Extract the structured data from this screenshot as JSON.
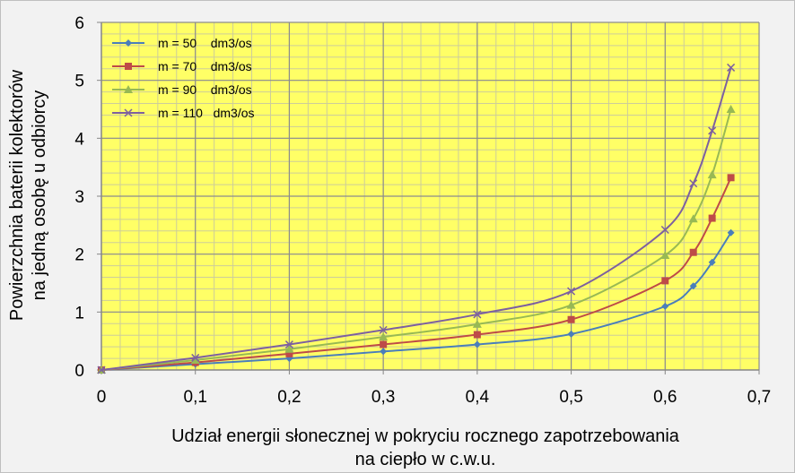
{
  "chart_data": {
    "type": "line",
    "title": "",
    "xlabel": [
      "Udział energii słonecznej w pokryciu rocznego zapotrzebowania",
      "na ciepło w c.w.u."
    ],
    "ylabel": [
      "Powierzchnia baterii kolektorów",
      "na jedną osobę u odbiorcy"
    ],
    "xlim": [
      0,
      0.7
    ],
    "ylim": [
      0,
      6
    ],
    "x_ticks": [
      "0",
      "0,1",
      "0,2",
      "0,3",
      "0,4",
      "0,5",
      "0,6",
      "0,7"
    ],
    "y_ticks": [
      "0",
      "1",
      "2",
      "3",
      "4",
      "5",
      "6"
    ],
    "grid": true,
    "minor_grid_x_step": 0.02,
    "minor_grid_y_step": 0.2,
    "legend_position": "top-left",
    "colors": {
      "plot_background": "#ffff66",
      "minor_grid": "#cdcd9a",
      "major_grid": "#8c8c8c",
      "outer_background": "#f2f2f2"
    },
    "series": [
      {
        "name": "m = 50    dm3/os",
        "color": "#4a7ebb",
        "marker": "diamond",
        "x": [
          0,
          0.1,
          0.2,
          0.3,
          0.4,
          0.5,
          0.6,
          0.63,
          0.65,
          0.67
        ],
        "y": [
          0,
          0.1,
          0.2,
          0.32,
          0.44,
          0.62,
          1.1,
          1.45,
          1.86,
          2.37
        ]
      },
      {
        "name": "m = 70    dm3/os",
        "color": "#be4b48",
        "marker": "square",
        "x": [
          0,
          0.1,
          0.2,
          0.3,
          0.4,
          0.5,
          0.6,
          0.63,
          0.65,
          0.67
        ],
        "y": [
          0,
          0.13,
          0.28,
          0.44,
          0.61,
          0.87,
          1.54,
          2.03,
          2.62,
          3.32
        ]
      },
      {
        "name": "m = 90    dm3/os",
        "color": "#98b954",
        "marker": "triangle",
        "x": [
          0,
          0.1,
          0.2,
          0.3,
          0.4,
          0.5,
          0.6,
          0.63,
          0.65,
          0.67
        ],
        "y": [
          0,
          0.17,
          0.36,
          0.57,
          0.79,
          1.12,
          1.98,
          2.61,
          3.37,
          4.5
        ]
      },
      {
        "name": "m = 110   dm3/os",
        "color": "#7d60a0",
        "marker": "x",
        "x": [
          0,
          0.1,
          0.2,
          0.3,
          0.4,
          0.5,
          0.6,
          0.63,
          0.65,
          0.67
        ],
        "y": [
          0,
          0.21,
          0.44,
          0.69,
          0.96,
          1.36,
          2.42,
          3.22,
          4.13,
          5.22
        ]
      }
    ]
  }
}
